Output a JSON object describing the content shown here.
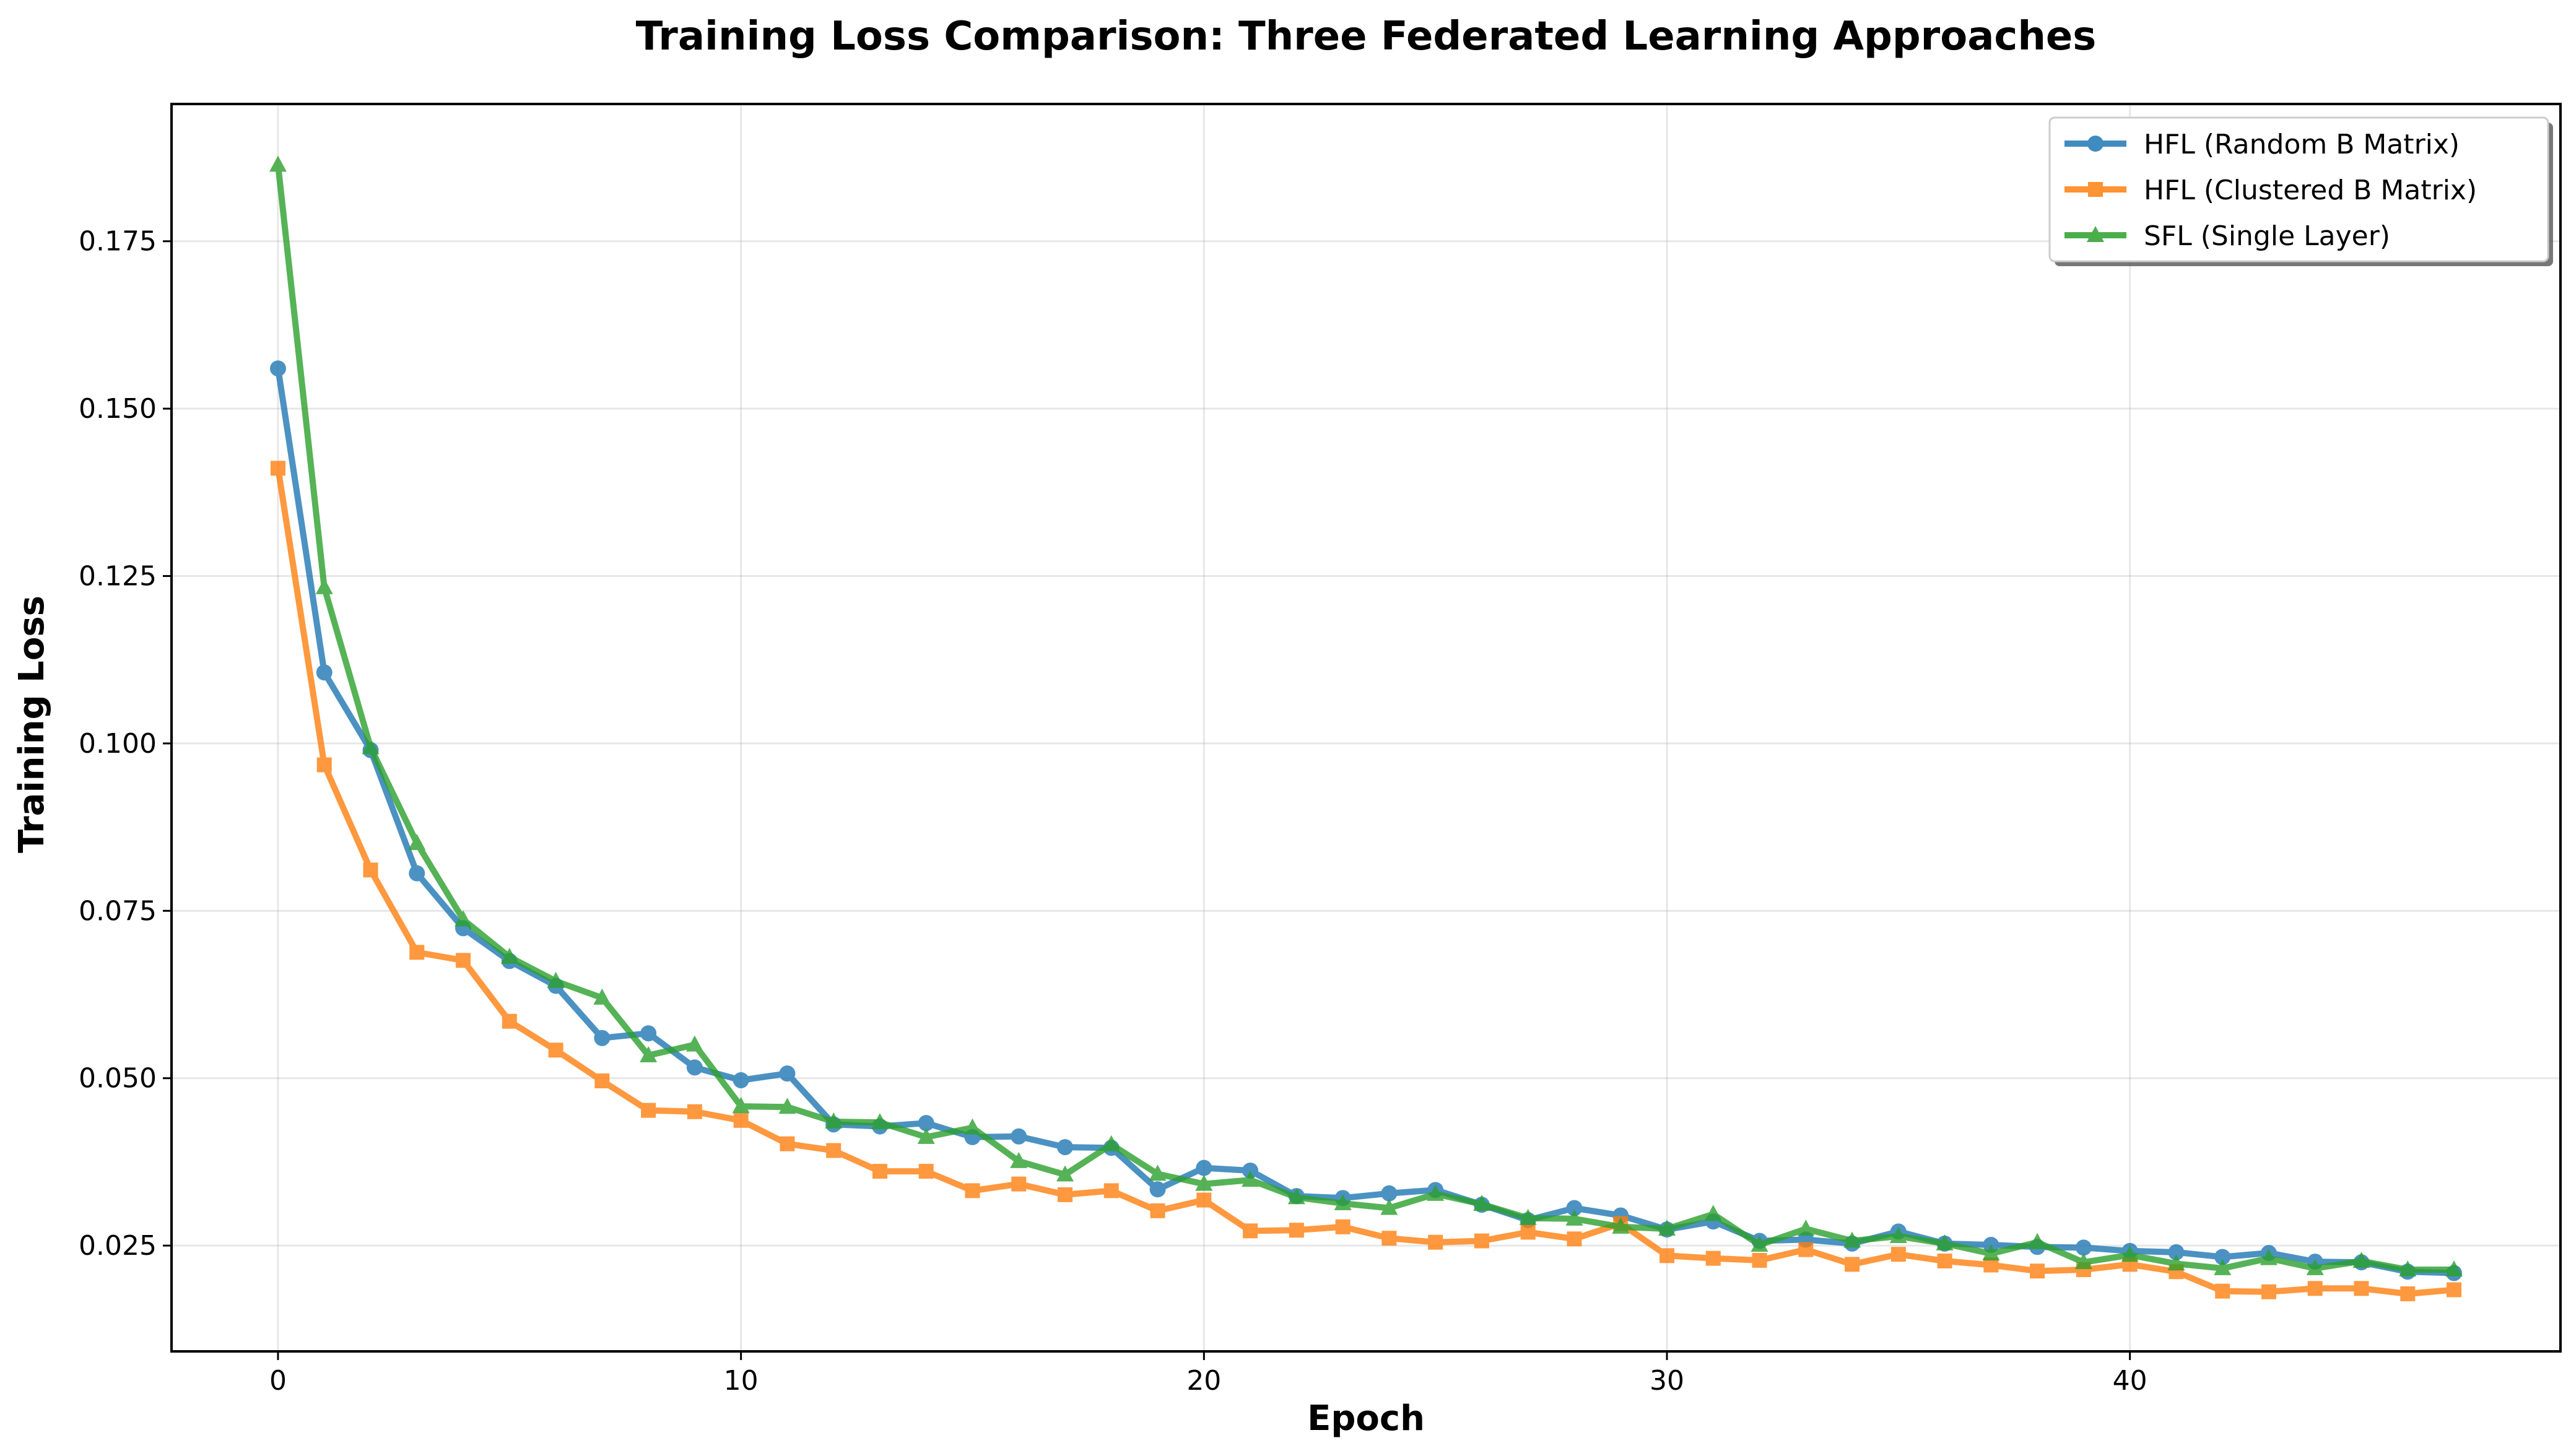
{
  "chart_data": {
    "type": "line",
    "title": "Training Loss Comparison: Three Federated Learning Approaches",
    "xlabel": "Epoch",
    "ylabel": "Training Loss",
    "xlim": [
      -2.3,
      49.3
    ],
    "ylim": [
      0.0092,
      0.1955
    ],
    "xticks": [
      0,
      10,
      20,
      30,
      40
    ],
    "yticks": [
      0.025,
      0.05,
      0.075,
      0.1,
      0.125,
      0.15,
      0.175
    ],
    "ytick_labels": [
      "0.025",
      "0.050",
      "0.075",
      "0.100",
      "0.125",
      "0.150",
      "0.175"
    ],
    "grid": true,
    "legend_position": "top-right",
    "x": [
      0,
      1,
      2,
      3,
      4,
      5,
      6,
      7,
      8,
      9,
      10,
      11,
      12,
      13,
      14,
      15,
      16,
      17,
      18,
      19,
      20,
      21,
      22,
      23,
      24,
      25,
      26,
      27,
      28,
      29,
      30,
      31,
      32,
      33,
      34,
      35,
      36,
      37,
      38,
      39,
      40,
      41,
      42,
      43,
      44,
      45,
      46,
      47
    ],
    "series": [
      {
        "name": "HFL (Random B Matrix)",
        "color": "#1f77b4",
        "marker": "circle",
        "values": [
          0.156,
          0.1106,
          0.099,
          0.0806,
          0.0724,
          0.0675,
          0.0638,
          0.056,
          0.0567,
          0.0516,
          0.0497,
          0.0507,
          0.0431,
          0.0428,
          0.0433,
          0.0412,
          0.0413,
          0.0397,
          0.0396,
          0.0334,
          0.0366,
          0.0362,
          0.0324,
          0.0321,
          0.0328,
          0.0333,
          0.0311,
          0.0288,
          0.0306,
          0.0295,
          0.0274,
          0.0286,
          0.0257,
          0.0259,
          0.0253,
          0.0271,
          0.0253,
          0.0251,
          0.0248,
          0.0247,
          0.0242,
          0.024,
          0.0233,
          0.0239,
          0.0226,
          0.0225,
          0.0211,
          0.0209
        ]
      },
      {
        "name": "HFL (Clustered B Matrix)",
        "color": "#ff7f0e",
        "marker": "square",
        "values": [
          0.1411,
          0.0968,
          0.0811,
          0.0688,
          0.0676,
          0.0585,
          0.0542,
          0.0496,
          0.0452,
          0.045,
          0.0437,
          0.0402,
          0.0392,
          0.0361,
          0.0361,
          0.0332,
          0.0342,
          0.0326,
          0.0332,
          0.0302,
          0.0318,
          0.0272,
          0.0273,
          0.0278,
          0.0261,
          0.0255,
          0.0257,
          0.027,
          0.026,
          0.0283,
          0.0235,
          0.0231,
          0.0228,
          0.0244,
          0.0222,
          0.0237,
          0.0227,
          0.0221,
          0.0212,
          0.0214,
          0.0222,
          0.0211,
          0.0182,
          0.0181,
          0.0186,
          0.0186,
          0.0178,
          0.0184
        ]
      },
      {
        "name": "SFL (Single Layer)",
        "color": "#2ca02c",
        "marker": "triangle",
        "values": [
          0.1864,
          0.1233,
          0.0994,
          0.0851,
          0.0737,
          0.0681,
          0.0645,
          0.062,
          0.0534,
          0.055,
          0.0458,
          0.0457,
          0.0435,
          0.0434,
          0.0412,
          0.0426,
          0.0376,
          0.0356,
          0.0401,
          0.0357,
          0.0342,
          0.0348,
          0.0322,
          0.0313,
          0.0306,
          0.0327,
          0.0312,
          0.0291,
          0.029,
          0.0278,
          0.0275,
          0.0297,
          0.0251,
          0.0275,
          0.0257,
          0.0264,
          0.0253,
          0.0238,
          0.0255,
          0.0225,
          0.0236,
          0.0223,
          0.0216,
          0.0231,
          0.0216,
          0.0227,
          0.0214,
          0.0214
        ]
      }
    ]
  }
}
